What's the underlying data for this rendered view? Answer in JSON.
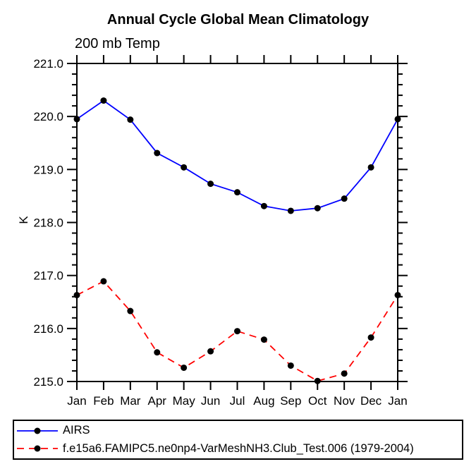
{
  "title": "Annual Cycle Global Mean Climatology",
  "subtitle": "200 mb Temp",
  "chart_data": {
    "type": "line",
    "title": "Annual Cycle Global Mean Climatology",
    "subtitle": "200 mb Temp",
    "xlabel": "",
    "ylabel": "K",
    "categories": [
      "Jan",
      "Feb",
      "Mar",
      "Apr",
      "May",
      "Jun",
      "Jul",
      "Aug",
      "Sep",
      "Oct",
      "Nov",
      "Dec",
      "Jan"
    ],
    "ylim": [
      215.0,
      221.0
    ],
    "ytick_major": 1.0,
    "ytick_minor": 0.2,
    "ytick_labels": [
      "215.0",
      "216.0",
      "217.0",
      "218.0",
      "219.0",
      "220.0",
      "221.0"
    ],
    "grid": false,
    "legend_position": "bottom-left",
    "axis_color": "#000000",
    "marker_color": "#000000",
    "series": [
      {
        "name": "AIRS",
        "color": "#0000ff",
        "line_style": "solid",
        "marker": "circle",
        "values": [
          219.95,
          220.3,
          219.94,
          219.31,
          219.04,
          218.73,
          218.57,
          218.31,
          218.22,
          218.27,
          218.45,
          219.04,
          219.95
        ]
      },
      {
        "name": "f.e15a6.FAMIPC5.ne0np4-VarMeshNH3.Club_Test.006 (1979-2004)",
        "color": "#ff0000",
        "line_style": "dashed",
        "marker": "circle",
        "values": [
          216.63,
          216.89,
          216.33,
          215.55,
          215.26,
          215.57,
          215.95,
          215.79,
          215.3,
          215.01,
          215.15,
          215.83,
          216.63
        ]
      }
    ]
  }
}
